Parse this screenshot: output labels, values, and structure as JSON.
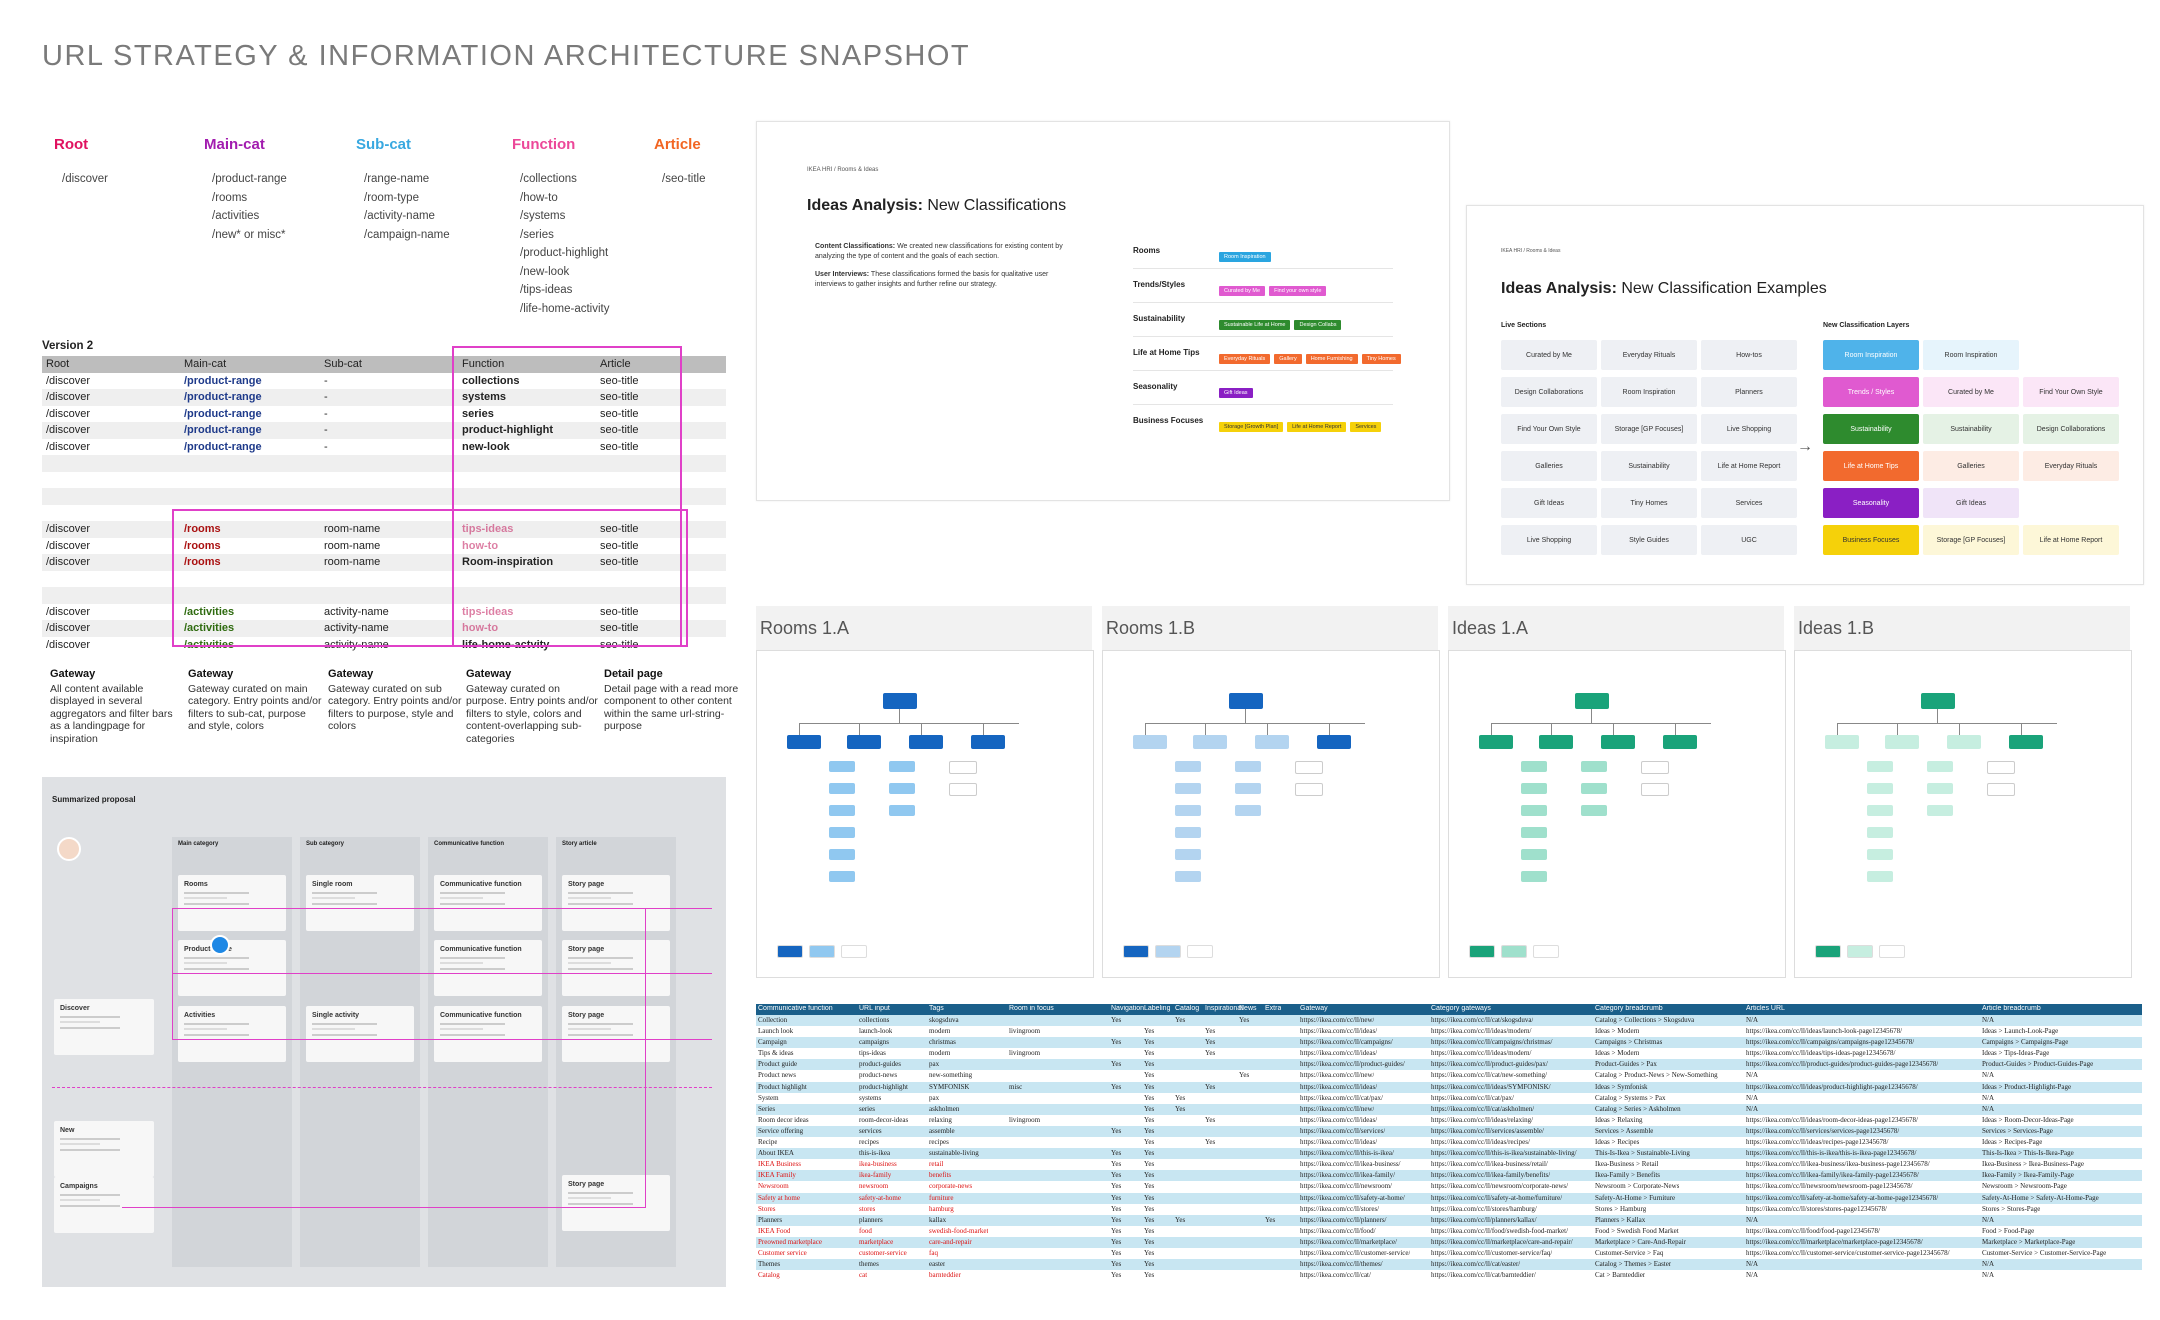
{
  "page_title": "URL STRATEGY & INFORMATION ARCHITECTURE SNAPSHOT",
  "levels": [
    {
      "label": "Root",
      "color": "#e0115f",
      "items": [
        "/discover"
      ]
    },
    {
      "label": "Main-cat",
      "color": "#a21caf",
      "items": [
        "/product-range",
        "/rooms",
        "/activities",
        "/new* or misc*"
      ]
    },
    {
      "label": "Sub-cat",
      "color": "#38a8e0",
      "items": [
        "/range-name",
        "/room-type",
        "/activity-name",
        "/campaign-name"
      ]
    },
    {
      "label": "Function",
      "color": "#ec4899",
      "items": [
        "/collections",
        "/how-to",
        "/systems",
        "/series",
        "/product-highlight",
        "/new-look",
        "/tips-ideas",
        "/life-home-activity"
      ]
    },
    {
      "label": "Article",
      "color": "#f26522",
      "items": [
        "/seo-title"
      ]
    }
  ],
  "version_table": {
    "title": "Version 2",
    "headers": [
      "Root",
      "Main-cat",
      "Sub-cat",
      "Function",
      "Article"
    ],
    "rows": [
      [
        "/discover",
        "/product-range",
        "-",
        "collections",
        "seo-title"
      ],
      [
        "/discover",
        "/product-range",
        "-",
        "systems",
        "seo-title"
      ],
      [
        "/discover",
        "/product-range",
        "-",
        "series",
        "seo-title"
      ],
      [
        "/discover",
        "/product-range",
        "-",
        "product-highlight",
        "seo-title"
      ],
      [
        "/discover",
        "/product-range",
        "-",
        "new-look",
        "seo-title"
      ],
      [
        "",
        "",
        "",
        "",
        ""
      ],
      [
        "",
        "",
        "",
        "",
        ""
      ],
      [
        "",
        "",
        "",
        "",
        ""
      ],
      [
        "",
        "",
        "",
        "",
        ""
      ],
      [
        "/discover",
        "/rooms",
        "room-name",
        "tips-ideas",
        "seo-title"
      ],
      [
        "/discover",
        "/rooms",
        "room-name",
        "how-to",
        "seo-title"
      ],
      [
        "/discover",
        "/rooms",
        "room-name",
        "Room-inspiration",
        "seo-title"
      ],
      [
        "",
        "",
        "",
        "",
        ""
      ],
      [
        "",
        "",
        "",
        "",
        ""
      ],
      [
        "/discover",
        "/activities",
        "activity-name",
        "tips-ideas",
        "seo-title"
      ],
      [
        "/discover",
        "/activities",
        "activity-name",
        "how-to",
        "seo-title"
      ],
      [
        "/discover",
        "/activities",
        "activity-name",
        "life-home-actvity",
        "seo-title"
      ]
    ],
    "gateways": [
      {
        "title": "Gateway",
        "text": "All content available displayed in several aggregators and filter bars as a landingpage for inspiration"
      },
      {
        "title": "Gateway",
        "text": "Gateway curated on main category. Entry points and/or filters to sub-cat, purpose and style, colors"
      },
      {
        "title": "Gateway",
        "text": "Gateway curated on sub category. Entry points and/or filters to purpose, style and colors"
      },
      {
        "title": "Gateway",
        "text": "Gateway curated on purpose. Entry points and/or filters to style, colors and content-overlapping sub-categories"
      },
      {
        "title": "Detail page",
        "text": "Detail page with a read more component to other content within the same url-string-purpose"
      }
    ]
  },
  "proposal": {
    "title": "Summarized proposal",
    "columns": [
      "Main category",
      "Sub category",
      "Communicative function",
      "Story article"
    ],
    "main_cards": [
      "Rooms",
      "Product-range",
      "Activities"
    ],
    "sub_cards": [
      "Single room",
      "",
      "Single activity"
    ],
    "func_cards": [
      "Communicative function",
      "Communicative function",
      "Communicative function"
    ],
    "story_cards": [
      "Story page",
      "Story page",
      "Story page",
      "Story page"
    ],
    "left_cards": [
      "Discover",
      "New",
      "Campaigns"
    ]
  },
  "slide1": {
    "crumb": "IKEA HRI / Rooms & Ideas",
    "title_bold": "Ideas Analysis:",
    "title_rest": " New Classifications",
    "bullets": [
      {
        "b": "Content Classifications:",
        "t": " We created new classifications for existing content by analyzing the type of content and the goals of each section."
      },
      {
        "b": "User Interviews:",
        "t": " These classifications formed the basis for qualitative user interviews to gather insights and further refine our strategy."
      }
    ],
    "rows": [
      {
        "label": "Rooms",
        "chips": [
          {
            "t": "Room Inspiration",
            "c": "#2aa5e0"
          }
        ]
      },
      {
        "label": "Trends/Styles",
        "chips": [
          {
            "t": "Curated by Me",
            "c": "#e05ad0"
          },
          {
            "t": "Find your own style",
            "c": "#e05ad0"
          }
        ]
      },
      {
        "label": "Sustainability",
        "chips": [
          {
            "t": "Sustainable Life at Home",
            "c": "#2e8b2e"
          },
          {
            "t": "Design Collabs",
            "c": "#2e8b2e"
          }
        ]
      },
      {
        "label": "Life at Home Tips",
        "chips": [
          {
            "t": "Everyday Rituals",
            "c": "#f26a2e"
          },
          {
            "t": "Gallery",
            "c": "#f26a2e"
          },
          {
            "t": "Home Furnishing",
            "c": "#f26a2e"
          },
          {
            "t": "Tiny Homes",
            "c": "#f26a2e"
          }
        ]
      },
      {
        "label": "Seasonality",
        "chips": [
          {
            "t": "Gift Ideas",
            "c": "#8a1fc4"
          }
        ]
      },
      {
        "label": "Business Focuses",
        "chips": [
          {
            "t": "Storage [Growth Plan]",
            "c": "#f5d10a"
          },
          {
            "t": "Life at Home Report",
            "c": "#f5d10a"
          },
          {
            "t": "Services",
            "c": "#f5d10a"
          }
        ]
      }
    ]
  },
  "slide2": {
    "crumb": "IKEA HRI / Rooms & Ideas",
    "title_bold": "Ideas Analysis:",
    "title_rest": " New Classification Examples",
    "left_head": "Live Sections",
    "right_head": "New Classification Layers",
    "left_tags": [
      "Curated by Me",
      "Everyday Rituals",
      "How-tos",
      "Design Collaborations",
      "Room Inspiration",
      "Planners",
      "Find Your Own Style",
      "Storage [GP Focuses]",
      "Live Shopping",
      "Galleries",
      "Sustainability",
      "Life at Home Report",
      "Gift Ideas",
      "Tiny Homes",
      "Services",
      "Live Shopping",
      "Style Guides",
      "UGC"
    ],
    "layers": [
      {
        "t": "Room Inspiration",
        "c": "#4fb3ea",
        "fc": "#fff",
        "items": [
          "Room Inspiration"
        ],
        "ic": "#e6f4fc"
      },
      {
        "t": "Trends / Styles",
        "c": "#e05ad0",
        "fc": "#fff",
        "items": [
          "Curated by Me",
          "Find Your Own Style"
        ],
        "ic": "#fbe6f7"
      },
      {
        "t": "Sustainability",
        "c": "#2e8b2e",
        "fc": "#fff",
        "items": [
          "Sustainability",
          "Design Collaborations"
        ],
        "ic": "#e5f2e5"
      },
      {
        "t": "Life at Home Tips",
        "c": "#f26a2e",
        "fc": "#fff",
        "items": [
          "Galleries",
          "Everyday Rituals"
        ],
        "ic": "#fdece4"
      },
      {
        "t": "Seasonality",
        "c": "#8a1fc4",
        "fc": "#fff",
        "items": [
          "Gift Ideas"
        ],
        "ic": "#f0e4f8"
      },
      {
        "t": "Business Focuses",
        "c": "#f5d10a",
        "fc": "#333",
        "items": [
          "Storage [GP Focuses]",
          "Life at Home Report"
        ],
        "ic": "#fdf7d8"
      }
    ],
    "arrow": "→"
  },
  "diagrams": [
    {
      "title": "Rooms 1.A",
      "color": "#1565c0",
      "light": "#90c8f0"
    },
    {
      "title": "Rooms 1.B",
      "color": "#1565c0",
      "light": "#b3d4f0"
    },
    {
      "title": "Ideas 1.A",
      "color": "#1aa37a",
      "light": "#9fe0cc"
    },
    {
      "title": "Ideas 1.B",
      "color": "#1aa37a",
      "light": "#c6eee0"
    }
  ],
  "sheet": {
    "headers": [
      "Communicative function",
      "URL input",
      "Tags",
      "Room in focus",
      "Navigation",
      "Labeling",
      "Catalog",
      "Inspirational",
      "News",
      "Extra",
      "Gateway",
      "Category gateways",
      "Category breadcrumb",
      "Articles URL",
      "Article breadcrumb"
    ],
    "rows": [
      [
        "Collection",
        "collections",
        "skogsduva",
        "",
        "Yes",
        "",
        "Yes",
        "",
        "Yes",
        "",
        "https://ikea.com/cc/ll/new/",
        "https://ikea.com/cc/ll/cat/skogsduva/",
        "Catalog > Collections > Skogsduva",
        "N/A",
        "N/A"
      ],
      [
        "Launch look",
        "launch-look",
        "modern",
        "livingroom",
        "",
        "Yes",
        "",
        "Yes",
        "",
        "",
        "https://ikea.com/cc/ll/ideas/",
        "https://ikea.com/cc/ll/ideas/modern/",
        "Ideas > Modern",
        "https://ikea.com/cc/ll/ideas/launch-look-page12345678/",
        "Ideas > Launch-Look-Page"
      ],
      [
        "Campaign",
        "campaigns",
        "christmas",
        "",
        "Yes",
        "Yes",
        "",
        "Yes",
        "",
        "",
        "https://ikea.com/cc/ll/campaigns/",
        "https://ikea.com/cc/ll/campaigns/christmas/",
        "Campaigns > Christmas",
        "https://ikea.com/cc/ll/campaigns/campaigns-page12345678/",
        "Campaigns > Campaigns-Page"
      ],
      [
        "Tips & ideas",
        "tips-ideas",
        "modern",
        "livingroom",
        "",
        "Yes",
        "",
        "Yes",
        "",
        "",
        "https://ikea.com/cc/ll/ideas/",
        "https://ikea.com/cc/ll/ideas/modern/",
        "Ideas > Modern",
        "https://ikea.com/cc/ll/ideas/tips-ideas-page12345678/",
        "Ideas > Tips-Ideas-Page"
      ],
      [
        "Product guide",
        "product-guides",
        "pax",
        "",
        "Yes",
        "Yes",
        "",
        "",
        "",
        "",
        "https://ikea.com/cc/ll/product-guides/",
        "https://ikea.com/cc/ll/product-guides/pax/",
        "Product-Guides > Pax",
        "https://ikea.com/cc/ll/product-guides/product-guides-page12345678/",
        "Product-Guides > Product-Guides-Page"
      ],
      [
        "Product news",
        "product-news",
        "new-something",
        "",
        "",
        "Yes",
        "",
        "",
        "Yes",
        "",
        "https://ikea.com/cc/ll/new/",
        "https://ikea.com/cc/ll/cat/new-something/",
        "Catalog > Product-News > New-Something",
        "N/A",
        "N/A"
      ],
      [
        "Product highlight",
        "product-highlight",
        "SYMFONISK",
        "misc",
        "Yes",
        "Yes",
        "",
        "Yes",
        "",
        "",
        "https://ikea.com/cc/ll/ideas/",
        "https://ikea.com/cc/ll/ideas/SYMFONISK/",
        "Ideas > Symfonisk",
        "https://ikea.com/cc/ll/ideas/product-highlight-page12345678/",
        "Ideas > Product-Highlight-Page"
      ],
      [
        "System",
        "systems",
        "pax",
        "",
        "",
        "Yes",
        "Yes",
        "",
        "",
        "",
        "https://ikea.com/cc/ll/cat/pax/",
        "https://ikea.com/cc/ll/cat/pax/",
        "Catalog > Systems > Pax",
        "N/A",
        "N/A"
      ],
      [
        "Series",
        "series",
        "askholmen",
        "",
        "",
        "Yes",
        "Yes",
        "",
        "",
        "",
        "https://ikea.com/cc/ll/new/",
        "https://ikea.com/cc/ll/cat/askholmen/",
        "Catalog > Series > Askholmen",
        "N/A",
        "N/A"
      ],
      [
        "Room decor ideas",
        "room-decor-ideas",
        "relaxing",
        "livingroom",
        "",
        "Yes",
        "",
        "Yes",
        "",
        "",
        "https://ikea.com/cc/ll/ideas/",
        "https://ikea.com/cc/ll/ideas/relaxing/",
        "Ideas > Relaxing",
        "https://ikea.com/cc/ll/ideas/room-decor-ideas-page12345678/",
        "Ideas > Room-Decor-Ideas-Page"
      ],
      [
        "Service offering",
        "services",
        "assemble",
        "",
        "Yes",
        "Yes",
        "",
        "",
        "",
        "",
        "https://ikea.com/cc/ll/services/",
        "https://ikea.com/cc/ll/services/assemble/",
        "Services > Assemble",
        "https://ikea.com/cc/ll/services/services-page12345678/",
        "Services > Services-Page"
      ],
      [
        "Recipe",
        "recipes",
        "recipes",
        "",
        "",
        "Yes",
        "",
        "Yes",
        "",
        "",
        "https://ikea.com/cc/ll/ideas/",
        "https://ikea.com/cc/ll/ideas/recipes/",
        "Ideas > Recipes",
        "https://ikea.com/cc/ll/ideas/recipes-page12345678/",
        "Ideas > Recipes-Page"
      ],
      [
        "About IKEA",
        "this-is-ikea",
        "sustainable-living",
        "",
        "Yes",
        "Yes",
        "",
        "",
        "",
        "",
        "https://ikea.com/cc/ll/this-is-ikea/",
        "https://ikea.com/cc/ll/this-is-ikea/sustainable-living/",
        "This-Is-Ikea > Sustainable-Living",
        "https://ikea.com/cc/ll/this-is-ikea/this-is-ikea-page12345678/",
        "This-Is-Ikea > This-Is-Ikea-Page"
      ],
      [
        "IKEA Business",
        "ikea-business",
        "retail",
        "",
        "Yes",
        "Yes",
        "",
        "",
        "",
        "",
        "https://ikea.com/cc/ll/ikea-business/",
        "https://ikea.com/cc/ll/ikea-business/retail/",
        "Ikea-Business > Retail",
        "https://ikea.com/cc/ll/ikea-business/ikea-business-page12345678/",
        "Ikea-Business > Ikea-Business-Page"
      ],
      [
        "IKEA Family",
        "ikea-family",
        "benefits",
        "",
        "Yes",
        "Yes",
        "",
        "",
        "",
        "",
        "https://ikea.com/cc/ll/ikea-family/",
        "https://ikea.com/cc/ll/ikea-family/benefits/",
        "Ikea-Family > Benefits",
        "https://ikea.com/cc/ll/ikea-family/ikea-family-page12345678/",
        "Ikea-Family > Ikea-Family-Page"
      ],
      [
        "Newsroom",
        "newsroom",
        "corporate-news",
        "",
        "Yes",
        "Yes",
        "",
        "",
        "",
        "",
        "https://ikea.com/cc/ll/newsroom/",
        "https://ikea.com/cc/ll/newsroom/corporate-news/",
        "Newsroom > Corporate-News",
        "https://ikea.com/cc/ll/newsroom/newsroom-page12345678/",
        "Newsroom > Newsroom-Page"
      ],
      [
        "Safety at home",
        "safety-at-home",
        "furniture",
        "",
        "Yes",
        "Yes",
        "",
        "",
        "",
        "",
        "https://ikea.com/cc/ll/safety-at-home/",
        "https://ikea.com/cc/ll/safety-at-home/furniture/",
        "Safety-At-Home > Furniture",
        "https://ikea.com/cc/ll/safety-at-home/safety-at-home-page12345678/",
        "Safety-At-Home > Safety-At-Home-Page"
      ],
      [
        "Stores",
        "stores",
        "hamburg",
        "",
        "Yes",
        "Yes",
        "",
        "",
        "",
        "",
        "https://ikea.com/cc/ll/stores/",
        "https://ikea.com/cc/ll/stores/hamburg/",
        "Stores > Hamburg",
        "https://ikea.com/cc/ll/stores/stores-page12345678/",
        "Stores > Stores-Page"
      ],
      [
        "Planners",
        "planners",
        "kallax",
        "",
        "Yes",
        "Yes",
        "Yes",
        "",
        "",
        "Yes",
        "https://ikea.com/cc/ll/planners/",
        "https://ikea.com/cc/ll/planners/kallax/",
        "Planners > Kallax",
        "N/A",
        "N/A"
      ],
      [
        "IKEA Food",
        "food",
        "swedish-food-market",
        "",
        "Yes",
        "Yes",
        "",
        "",
        "",
        "",
        "https://ikea.com/cc/ll/food/",
        "https://ikea.com/cc/ll/food/swedish-food-market/",
        "Food > Swedish Food Market",
        "https://ikea.com/cc/ll/food/food-page12345678/",
        "Food > Food-Page"
      ],
      [
        "Preowned marketplace",
        "marketplace",
        "care-and-repair",
        "",
        "Yes",
        "Yes",
        "",
        "",
        "",
        "",
        "https://ikea.com/cc/ll/marketplace/",
        "https://ikea.com/cc/ll/marketplace/care-and-repair/",
        "Marketplace > Care-And-Repair",
        "https://ikea.com/cc/ll/marketplace/marketplace-page12345678/",
        "Marketplace > Marketplace-Page"
      ],
      [
        "Customer service",
        "customer-service",
        "faq",
        "",
        "Yes",
        "Yes",
        "",
        "",
        "",
        "",
        "https://ikea.com/cc/ll/customer-service/",
        "https://ikea.com/cc/ll/customer-service/faq/",
        "Customer-Service > Faq",
        "https://ikea.com/cc/ll/customer-service/customer-service-page12345678/",
        "Customer-Service > Customer-Service-Page"
      ],
      [
        "Themes",
        "themes",
        "easter",
        "",
        "Yes",
        "Yes",
        "",
        "",
        "",
        "",
        "https://ikea.com/cc/ll/themes/",
        "https://ikea.com/cc/ll/cat/easter/",
        "Catalog > Themes > Easter",
        "N/A",
        "N/A"
      ],
      [
        "Catalog",
        "cat",
        "barnteddier",
        "",
        "Yes",
        "Yes",
        "",
        "",
        "",
        "",
        "https://ikea.com/cc/ll/cat/",
        "https://ikea.com/cc/ll/cat/barnteddier/",
        "Cat > Barnteddier",
        "N/A",
        "N/A"
      ]
    ]
  }
}
